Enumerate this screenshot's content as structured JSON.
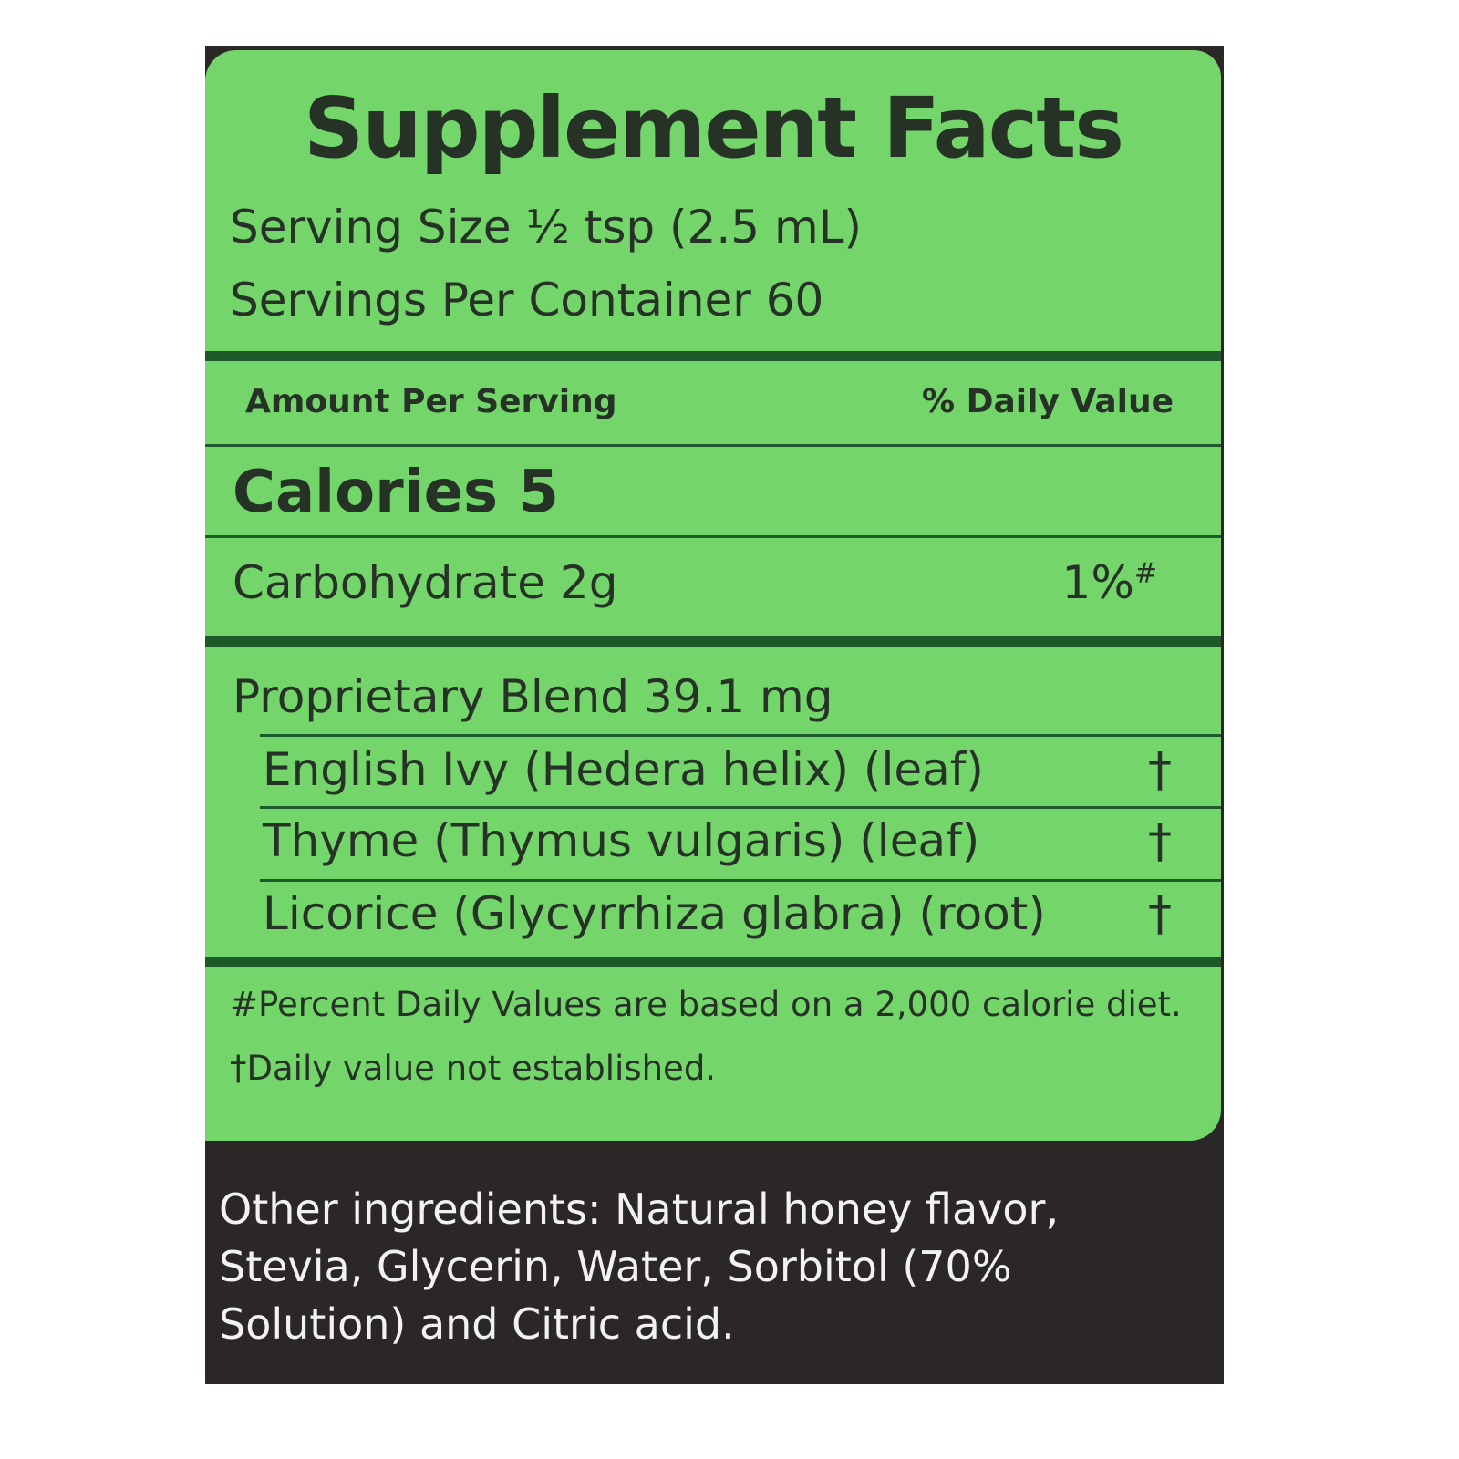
{
  "title": "Supplement Facts",
  "serving_size": "Serving Size ½ tsp (2.5 mL)",
  "servings_per_container": "Servings Per Container 60",
  "header": {
    "amount": "Amount Per Serving",
    "daily_value": "% Daily Value"
  },
  "calories": "Calories 5",
  "carbohydrate": {
    "label": "Carbohydrate 2g",
    "dv": "1%",
    "dv_mark": "#"
  },
  "blend": {
    "label": "Proprietary Blend 39.1 mg",
    "items": [
      {
        "name": "English Ivy (Hedera helix) (leaf)",
        "dv": "†"
      },
      {
        "name": "Thyme (Thymus vulgaris) (leaf)",
        "dv": "†"
      },
      {
        "name": "Licorice (Glycyrrhiza glabra) (root)",
        "dv": "†"
      }
    ]
  },
  "footnotes": [
    "#Percent Daily Values are based on a 2,000 calorie diet.",
    "†Daily value not established."
  ],
  "other_ingredients": "Other ingredients: Natural honey flavor, Stevia, Glycerin, Water, Sorbitol (70% Solution) and Citric acid.",
  "colors": {
    "panel": "#74d56b",
    "rules": "#1d5a2a",
    "background": "#2b2727"
  }
}
